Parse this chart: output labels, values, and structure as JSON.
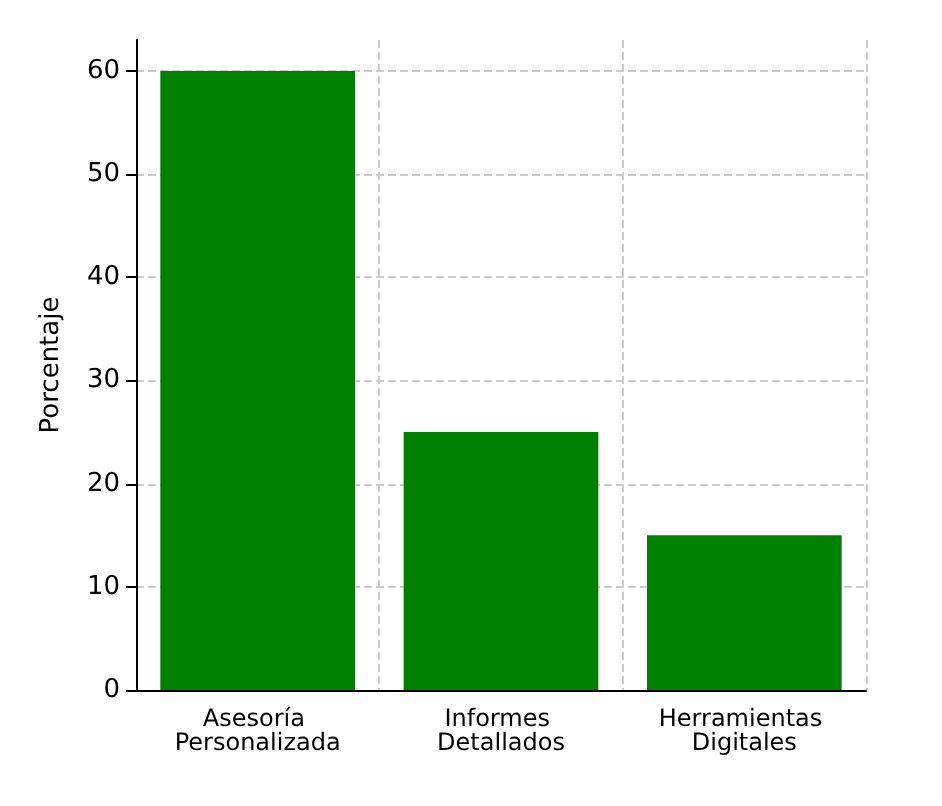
{
  "chart_data": {
    "type": "bar",
    "ylabel": "Porcentaje",
    "categories": [
      "Asesoría Personalizada",
      "Informes Detallados",
      "Herramientas Digitales"
    ],
    "values": [
      60,
      25,
      15
    ],
    "color": "#008000",
    "ylim": [
      0,
      63
    ],
    "yticks": [
      0,
      10,
      20,
      30,
      40,
      50,
      60
    ],
    "grid": true
  }
}
